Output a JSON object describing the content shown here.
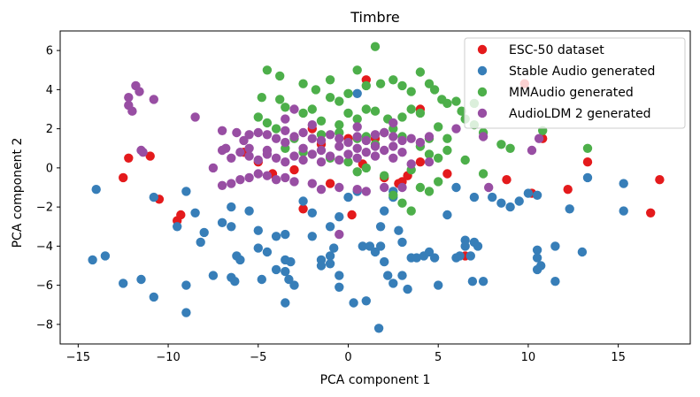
{
  "chart_data": {
    "type": "scatter",
    "title": "Timbre",
    "xlabel": "PCA component 1",
    "ylabel": "PCA component 2",
    "xlim": [
      -16.0,
      19.0
    ],
    "ylim": [
      -9.0,
      7.0
    ],
    "xticks": [
      -15,
      -10,
      -5,
      0,
      5,
      10,
      15
    ],
    "yticks": [
      -8,
      -6,
      -4,
      -2,
      0,
      2,
      4,
      6
    ],
    "legend_position": "top-right",
    "series": [
      {
        "name": "ESC-50 dataset",
        "color": "#e41a1c",
        "points": [
          [
            1.0,
            4.5
          ],
          [
            9.8,
            4.3
          ],
          [
            4.0,
            3.0
          ],
          [
            10.8,
            1.5
          ],
          [
            0.0,
            1.5
          ],
          [
            -1.5,
            1.2
          ],
          [
            -12.2,
            0.5
          ],
          [
            -11.0,
            0.6
          ],
          [
            -5.8,
            0.8
          ],
          [
            -5.0,
            0.3
          ],
          [
            -4.2,
            -0.3
          ],
          [
            -3.0,
            -0.1
          ],
          [
            -12.5,
            -0.5
          ],
          [
            -10.5,
            -1.6
          ],
          [
            -9.3,
            -2.4
          ],
          [
            -9.5,
            -2.7
          ],
          [
            -2.5,
            -2.1
          ],
          [
            0.2,
            -2.4
          ],
          [
            2.0,
            -0.5
          ],
          [
            2.8,
            -0.8
          ],
          [
            3.3,
            -0.4
          ],
          [
            5.5,
            -0.3
          ],
          [
            8.8,
            -0.6
          ],
          [
            10.2,
            -1.3
          ],
          [
            12.2,
            -1.1
          ],
          [
            13.3,
            0.3
          ],
          [
            16.8,
            -2.3
          ],
          [
            17.3,
            -0.6
          ],
          [
            6.5,
            -4.5
          ],
          [
            4.0,
            0.3
          ],
          [
            -1.0,
            -0.8
          ],
          [
            1.5,
            1.5
          ],
          [
            -2.0,
            2.0
          ],
          [
            3.0,
            -0.7
          ],
          [
            0.8,
            0.2
          ]
        ]
      },
      {
        "name": "Stable Audio generated",
        "color": "#377eb8",
        "points": [
          [
            0.5,
            3.8
          ],
          [
            -14.0,
            -1.1
          ],
          [
            -13.5,
            -4.5
          ],
          [
            -14.2,
            -4.7
          ],
          [
            -12.5,
            -5.9
          ],
          [
            -11.5,
            -5.7
          ],
          [
            -10.8,
            -6.6
          ],
          [
            -10.8,
            -1.5
          ],
          [
            -9.0,
            -1.2
          ],
          [
            -9.5,
            -3.0
          ],
          [
            -8.5,
            -2.3
          ],
          [
            -8.0,
            -3.3
          ],
          [
            -8.2,
            -3.8
          ],
          [
            -9.0,
            -6.0
          ],
          [
            -9.0,
            -7.4
          ],
          [
            -7.0,
            -2.8
          ],
          [
            -7.5,
            -5.5
          ],
          [
            -6.5,
            -2.0
          ],
          [
            -6.5,
            -3.0
          ],
          [
            -6.2,
            -4.5
          ],
          [
            -6.0,
            -4.7
          ],
          [
            -6.5,
            -5.6
          ],
          [
            -6.3,
            -5.8
          ],
          [
            -5.5,
            -2.2
          ],
          [
            -5.0,
            -3.2
          ],
          [
            -5.0,
            -4.1
          ],
          [
            -4.8,
            -5.7
          ],
          [
            -4.5,
            -4.3
          ],
          [
            -4.0,
            -3.5
          ],
          [
            -4.0,
            -5.2
          ],
          [
            -3.5,
            -4.7
          ],
          [
            -3.5,
            -5.3
          ],
          [
            -3.3,
            -5.7
          ],
          [
            -3.5,
            -6.9
          ],
          [
            -3.2,
            -4.8
          ],
          [
            -3.0,
            -6.0
          ],
          [
            -3.5,
            -3.4
          ],
          [
            -2.5,
            -1.7
          ],
          [
            -2.0,
            -2.3
          ],
          [
            -1.5,
            -4.7
          ],
          [
            -1.5,
            -5.0
          ],
          [
            -1.0,
            -4.5
          ],
          [
            -1.0,
            -4.9
          ],
          [
            -0.5,
            -5.5
          ],
          [
            -0.5,
            -6.1
          ],
          [
            -0.8,
            -4.1
          ],
          [
            -1.0,
            -3.0
          ],
          [
            -0.5,
            -2.5
          ],
          [
            0.0,
            -1.5
          ],
          [
            0.5,
            -1.2
          ],
          [
            0.8,
            -4.0
          ],
          [
            1.2,
            -4.0
          ],
          [
            1.5,
            -4.3
          ],
          [
            1.8,
            -3.0
          ],
          [
            1.8,
            -4.0
          ],
          [
            2.0,
            -2.2
          ],
          [
            2.5,
            -1.5
          ],
          [
            2.8,
            -3.2
          ],
          [
            3.0,
            -3.8
          ],
          [
            2.0,
            -4.8
          ],
          [
            2.2,
            -5.5
          ],
          [
            2.5,
            -5.9
          ],
          [
            3.0,
            -5.5
          ],
          [
            3.3,
            -6.2
          ],
          [
            3.5,
            -4.6
          ],
          [
            3.8,
            -4.6
          ],
          [
            4.2,
            -4.5
          ],
          [
            4.5,
            -4.3
          ],
          [
            4.8,
            -4.6
          ],
          [
            5.0,
            -6.0
          ],
          [
            5.5,
            -2.4
          ],
          [
            6.0,
            -4.6
          ],
          [
            6.2,
            -4.5
          ],
          [
            6.5,
            -3.7
          ],
          [
            6.5,
            -4.0
          ],
          [
            6.8,
            -4.5
          ],
          [
            6.9,
            -5.8
          ],
          [
            7.0,
            -3.8
          ],
          [
            7.2,
            -4.0
          ],
          [
            7.5,
            -5.8
          ],
          [
            6.0,
            -1.0
          ],
          [
            7.0,
            -1.5
          ],
          [
            8.0,
            -1.5
          ],
          [
            8.5,
            -1.8
          ],
          [
            9.0,
            -2.0
          ],
          [
            9.5,
            -1.7
          ],
          [
            10.0,
            -1.3
          ],
          [
            10.5,
            -1.4
          ],
          [
            10.5,
            -4.2
          ],
          [
            10.5,
            -4.6
          ],
          [
            10.5,
            -5.2
          ],
          [
            10.7,
            -5.0
          ],
          [
            11.5,
            -4.0
          ],
          [
            11.5,
            -5.8
          ],
          [
            12.3,
            -2.1
          ],
          [
            13.0,
            -4.3
          ],
          [
            13.3,
            -0.5
          ],
          [
            15.3,
            -0.8
          ],
          [
            15.3,
            -2.2
          ],
          [
            1.0,
            -6.8
          ],
          [
            1.7,
            -8.2
          ],
          [
            0.3,
            -6.9
          ],
          [
            -2.0,
            -3.5
          ],
          [
            2.5,
            -1.2
          ]
        ]
      },
      {
        "name": "MMAudio generated",
        "color": "#4daf4a",
        "points": [
          [
            1.5,
            6.2
          ],
          [
            -4.5,
            5.0
          ],
          [
            -3.8,
            4.7
          ],
          [
            -2.5,
            4.3
          ],
          [
            -1.8,
            4.0
          ],
          [
            -1.0,
            4.5
          ],
          [
            -0.5,
            3.4
          ],
          [
            0.0,
            3.8
          ],
          [
            0.5,
            5.0
          ],
          [
            1.0,
            4.2
          ],
          [
            1.8,
            4.3
          ],
          [
            2.5,
            4.5
          ],
          [
            3.0,
            4.2
          ],
          [
            3.5,
            3.9
          ],
          [
            4.0,
            4.9
          ],
          [
            4.5,
            4.3
          ],
          [
            4.8,
            4.0
          ],
          [
            5.2,
            3.5
          ],
          [
            5.5,
            3.3
          ],
          [
            -4.8,
            3.6
          ],
          [
            -3.8,
            3.5
          ],
          [
            -3.5,
            3.1
          ],
          [
            -2.5,
            2.8
          ],
          [
            -2.0,
            3.0
          ],
          [
            -1.0,
            3.6
          ],
          [
            -0.5,
            2.2
          ],
          [
            0.0,
            2.8
          ],
          [
            1.0,
            3.0
          ],
          [
            1.5,
            2.9
          ],
          [
            2.2,
            2.5
          ],
          [
            2.5,
            2.0
          ],
          [
            3.0,
            2.6
          ],
          [
            3.5,
            3.0
          ],
          [
            4.0,
            2.8
          ],
          [
            4.5,
            1.5
          ],
          [
            5.0,
            2.1
          ],
          [
            5.5,
            1.5
          ],
          [
            6.0,
            3.4
          ],
          [
            6.5,
            2.5
          ],
          [
            7.0,
            2.2
          ],
          [
            7.5,
            1.8
          ],
          [
            8.5,
            1.2
          ],
          [
            9.0,
            1.0
          ],
          [
            -5.0,
            2.6
          ],
          [
            -4.5,
            2.3
          ],
          [
            -4.0,
            2.0
          ],
          [
            -3.0,
            1.5
          ],
          [
            -1.5,
            1.7
          ],
          [
            -0.5,
            1.8
          ],
          [
            0.5,
            1.5
          ],
          [
            1.0,
            1.6
          ],
          [
            1.5,
            1.2
          ],
          [
            2.0,
            1.8
          ],
          [
            3.0,
            1.6
          ],
          [
            4.0,
            1.1
          ],
          [
            4.5,
            0.7
          ],
          [
            5.0,
            0.5
          ],
          [
            5.5,
            0.9
          ],
          [
            6.5,
            0.4
          ],
          [
            7.5,
            -0.3
          ],
          [
            -3.5,
            1.0
          ],
          [
            -2.5,
            0.8
          ],
          [
            -1.0,
            0.5
          ],
          [
            0.0,
            0.3
          ],
          [
            0.5,
            -0.2
          ],
          [
            1.0,
            0.0
          ],
          [
            2.0,
            -0.4
          ],
          [
            3.5,
            -0.1
          ],
          [
            4.0,
            -1.0
          ],
          [
            4.5,
            -1.2
          ],
          [
            5.0,
            -0.7
          ],
          [
            3.5,
            -2.2
          ],
          [
            3.0,
            -1.8
          ],
          [
            2.5,
            -1.4
          ],
          [
            13.3,
            1.0
          ],
          [
            10.8,
            1.9
          ],
          [
            7.0,
            3.3
          ],
          [
            6.3,
            2.9
          ],
          [
            0.5,
            2.5
          ],
          [
            -1.5,
            2.4
          ]
        ]
      },
      {
        "name": "AudioLDM 2 generated",
        "color": "#984ea3",
        "points": [
          [
            -11.8,
            4.2
          ],
          [
            -11.6,
            3.9
          ],
          [
            -12.2,
            3.6
          ],
          [
            -12.2,
            3.2
          ],
          [
            -12.0,
            2.9
          ],
          [
            -10.8,
            3.5
          ],
          [
            -8.5,
            2.6
          ],
          [
            -11.5,
            0.9
          ],
          [
            -11.4,
            0.8
          ],
          [
            -7.5,
            0.0
          ],
          [
            -6.8,
            1.0
          ],
          [
            -7.0,
            1.9
          ],
          [
            -6.2,
            1.8
          ],
          [
            -5.8,
            1.4
          ],
          [
            -5.5,
            1.7
          ],
          [
            -5.0,
            1.8
          ],
          [
            -4.5,
            1.7
          ],
          [
            -4.0,
            1.5
          ],
          [
            -3.5,
            1.9
          ],
          [
            -3.0,
            1.6
          ],
          [
            -2.5,
            1.8
          ],
          [
            -2.0,
            1.5
          ],
          [
            -1.5,
            1.4
          ],
          [
            -1.0,
            1.7
          ],
          [
            -0.5,
            1.5
          ],
          [
            0.0,
            1.3
          ],
          [
            0.5,
            1.6
          ],
          [
            1.0,
            1.4
          ],
          [
            1.5,
            1.7
          ],
          [
            2.0,
            1.8
          ],
          [
            2.5,
            1.6
          ],
          [
            3.0,
            1.4
          ],
          [
            3.5,
            1.5
          ],
          [
            4.0,
            1.3
          ],
          [
            4.5,
            1.6
          ],
          [
            -7.0,
            0.9
          ],
          [
            -6.5,
            0.5
          ],
          [
            -6.0,
            0.8
          ],
          [
            -5.5,
            0.6
          ],
          [
            -5.0,
            0.4
          ],
          [
            -4.5,
            0.7
          ],
          [
            -4.0,
            0.5
          ],
          [
            -3.5,
            0.3
          ],
          [
            -3.0,
            0.6
          ],
          [
            -2.5,
            0.4
          ],
          [
            -2.0,
            0.7
          ],
          [
            -1.5,
            0.3
          ],
          [
            -1.0,
            0.6
          ],
          [
            -0.5,
            0.4
          ],
          [
            0.0,
            0.7
          ],
          [
            0.5,
            0.5
          ],
          [
            1.0,
            0.8
          ],
          [
            1.5,
            0.6
          ],
          [
            2.0,
            0.9
          ],
          [
            2.5,
            0.5
          ],
          [
            -7.0,
            -0.9
          ],
          [
            -6.5,
            -0.8
          ],
          [
            -6.0,
            -0.6
          ],
          [
            -5.5,
            -0.5
          ],
          [
            -5.0,
            -0.3
          ],
          [
            -4.5,
            -0.4
          ],
          [
            -4.0,
            -0.6
          ],
          [
            -3.5,
            -0.5
          ],
          [
            -3.0,
            -0.7
          ],
          [
            -2.0,
            -0.8
          ],
          [
            -1.5,
            -1.1
          ],
          [
            -0.5,
            -1.0
          ],
          [
            0.5,
            -1.1
          ],
          [
            1.0,
            -1.2
          ],
          [
            2.0,
            -1.0
          ],
          [
            3.0,
            -1.0
          ],
          [
            -5.5,
            1.0
          ],
          [
            -4.5,
            0.9
          ],
          [
            -3.5,
            1.3
          ],
          [
            -2.5,
            1.0
          ],
          [
            -1.5,
            0.9
          ],
          [
            -0.5,
            1.1
          ],
          [
            0.5,
            1.0
          ],
          [
            1.5,
            1.1
          ],
          [
            2.5,
            1.1
          ],
          [
            3.0,
            0.8
          ],
          [
            4.5,
            0.3
          ],
          [
            3.5,
            0.2
          ],
          [
            -2.0,
            2.2
          ],
          [
            -3.5,
            2.5
          ],
          [
            0.5,
            2.1
          ],
          [
            2.5,
            2.3
          ],
          [
            7.5,
            1.6
          ],
          [
            7.8,
            -1.0
          ],
          [
            10.2,
            0.9
          ],
          [
            10.6,
            1.5
          ],
          [
            -0.5,
            -3.4
          ],
          [
            6.0,
            2.0
          ],
          [
            -3.0,
            3.0
          ]
        ]
      }
    ]
  }
}
